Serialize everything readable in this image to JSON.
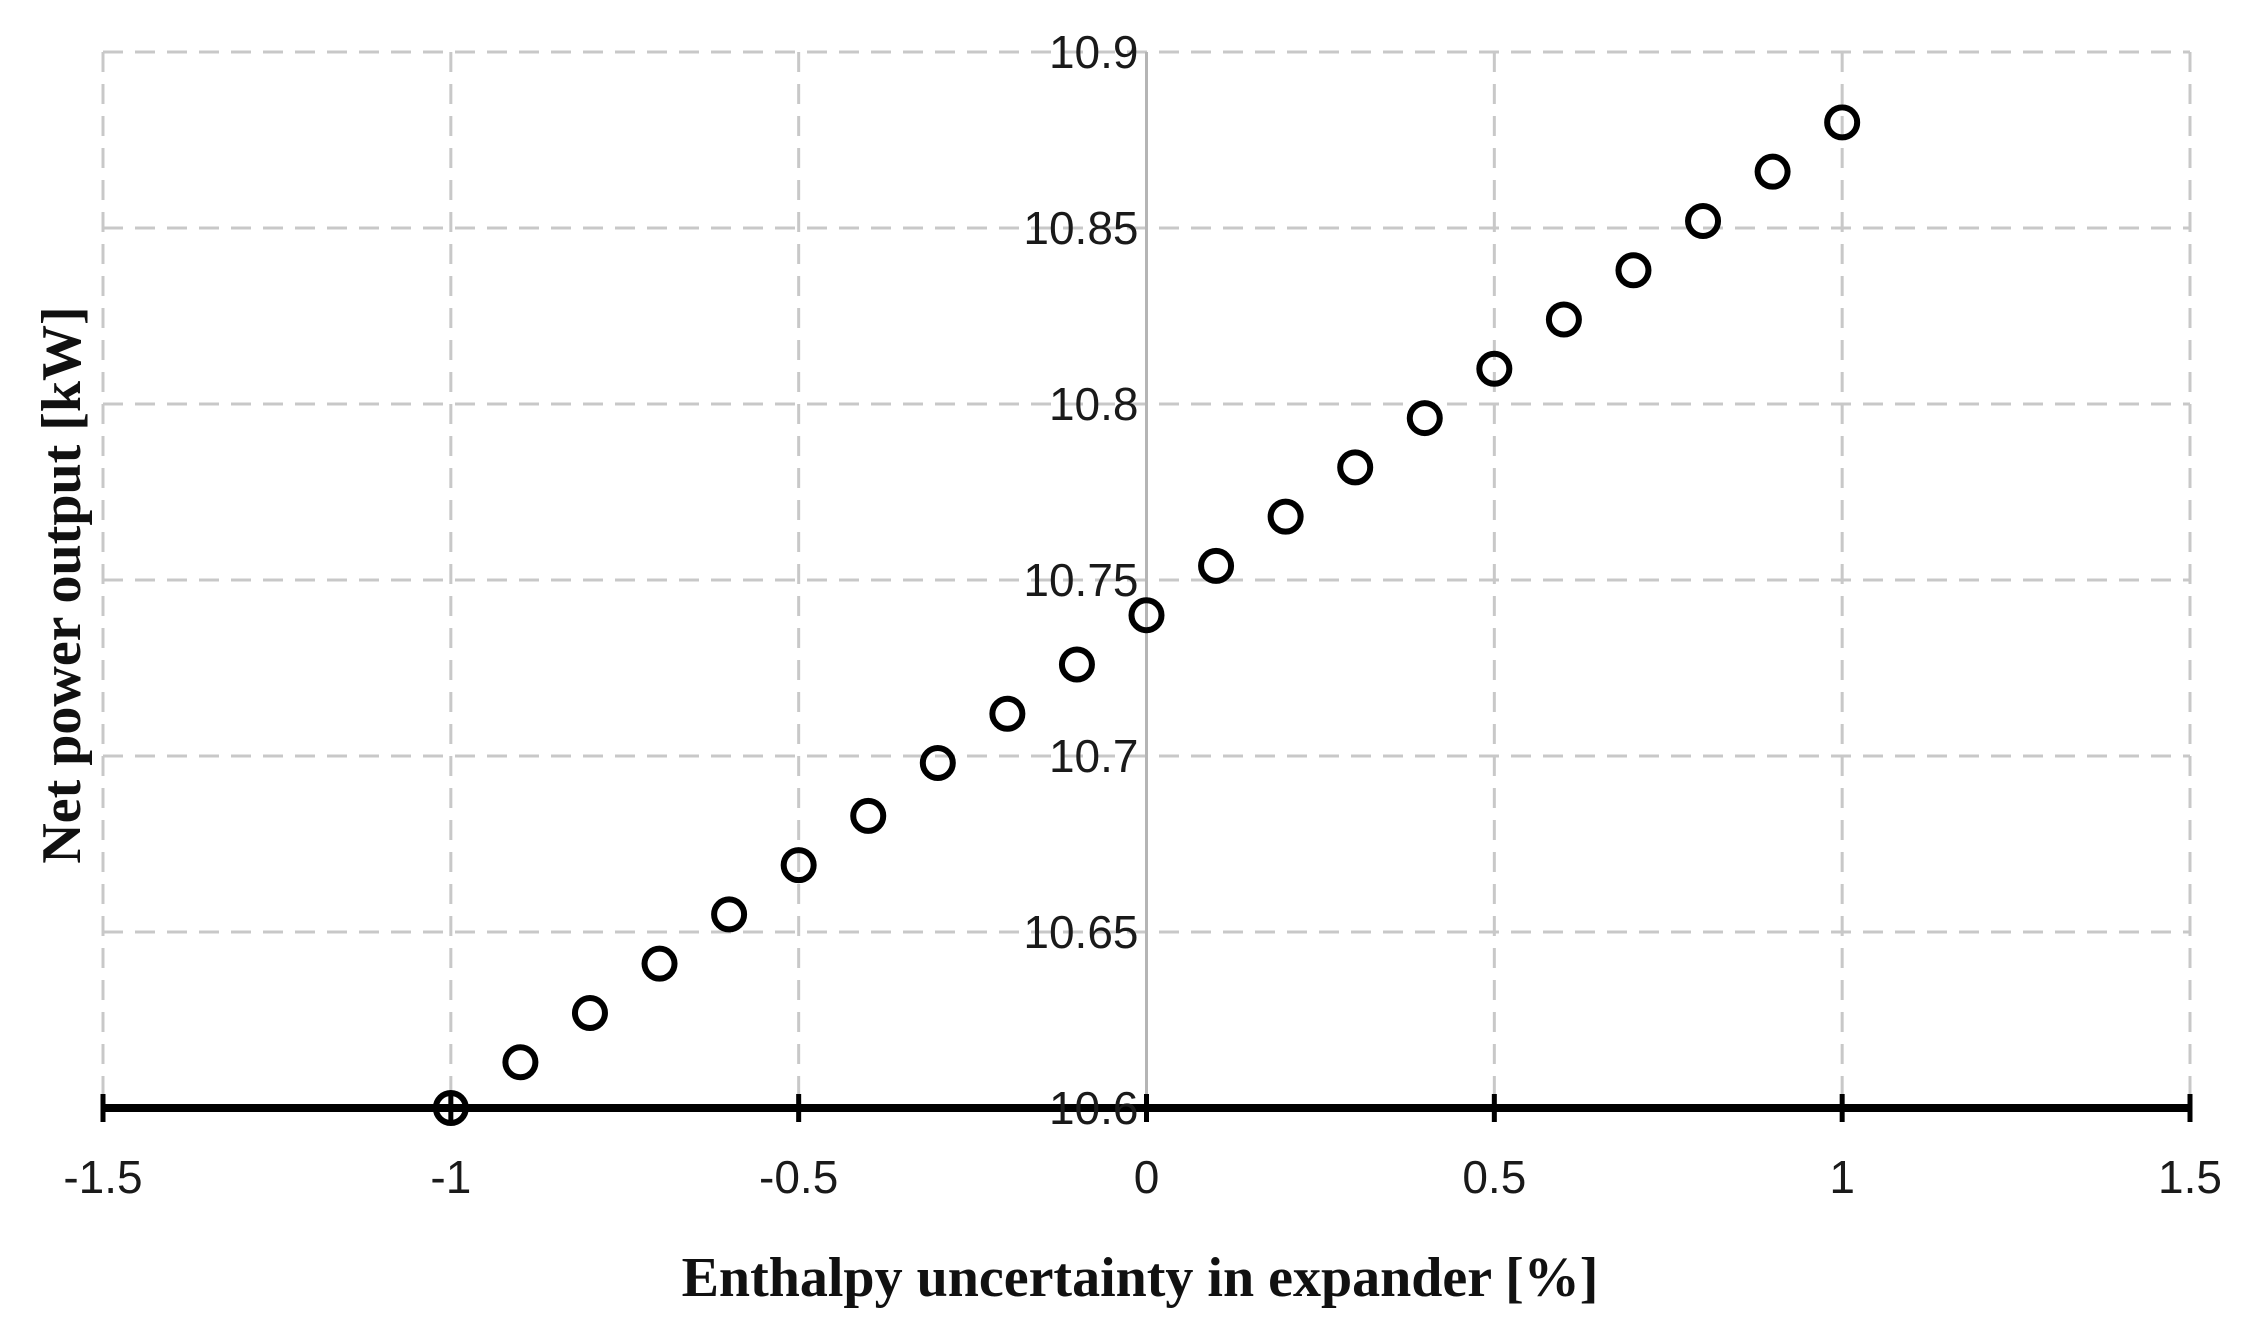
{
  "chart_data": {
    "type": "scatter",
    "xlabel": "Enthalpy uncertainty in expander [%]",
    "ylabel": "Net power output  [kW]",
    "xlim": [
      -1.5,
      1.5
    ],
    "ylim": [
      10.6,
      10.9
    ],
    "x_ticks": [
      -1.5,
      -1,
      -0.5,
      0,
      0.5,
      1,
      1.5
    ],
    "x_tick_labels": [
      "-1.5",
      "-1",
      "-0.5",
      "0",
      "0.5",
      "1",
      "1.5"
    ],
    "y_ticks": [
      10.6,
      10.65,
      10.7,
      10.75,
      10.8,
      10.85,
      10.9
    ],
    "y_tick_labels": [
      "10.6",
      "10.65",
      "10.7",
      "10.75",
      "10.8",
      "10.85",
      "10.9"
    ],
    "grid": true,
    "marker": "open-circle",
    "series": [
      {
        "x": [
          -1,
          -0.9,
          -0.8,
          -0.7,
          -0.6,
          -0.5,
          -0.4,
          -0.3,
          -0.2,
          -0.1,
          0,
          0.1,
          0.2,
          0.3,
          0.4,
          0.5,
          0.6,
          0.7,
          0.8,
          0.9,
          1
        ],
        "y": [
          10.6,
          10.613,
          10.627,
          10.641,
          10.655,
          10.669,
          10.683,
          10.698,
          10.712,
          10.726,
          10.74,
          10.754,
          10.768,
          10.782,
          10.796,
          10.81,
          10.824,
          10.838,
          10.852,
          10.866,
          10.88
        ]
      }
    ]
  }
}
